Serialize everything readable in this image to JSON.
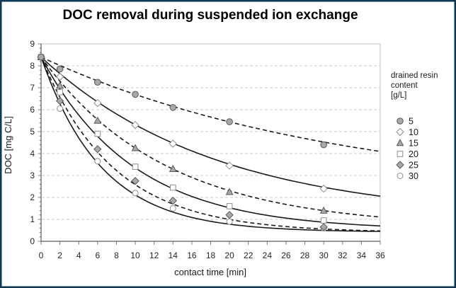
{
  "frame": {
    "border_color": "#0e3a5a",
    "background": "#ffffff"
  },
  "colors": {
    "grid": "#c9c9c9",
    "plot_border": "#bfbfbf",
    "axis": "#595959",
    "tick": "#808080",
    "trend_line": "#1a1a1a",
    "marker_fill_gray": "#a8a8a8",
    "marker_stroke_dark": "#595959",
    "marker_stroke_open": "#8c8c8c",
    "marker_fill_open": "#ffffff"
  },
  "chart_data": {
    "type": "scatter",
    "title": "DOC removal during suspended ion exchange",
    "xlabel": "contact time [min]",
    "ylabel": "DOC [mg C/L]",
    "xlim": [
      0,
      36
    ],
    "ylim": [
      0,
      9
    ],
    "x_tick_step": 2,
    "y_tick_step": 1,
    "y_minor_tick_step": 0.2,
    "grid": "horizontal dashed gridlines at each integer",
    "legend": {
      "position": "right",
      "title_lines": [
        "drained resin",
        "content",
        "[g/L]"
      ]
    },
    "x": [
      0,
      2,
      6,
      10,
      14,
      20,
      30
    ],
    "series": [
      {
        "name": "5",
        "marker": "circle-filled",
        "line": "dashed",
        "values": [
          8.4,
          7.85,
          7.25,
          6.7,
          6.1,
          5.45,
          4.4
        ],
        "trend": {
          "model": "exp-decay",
          "k": 0.031,
          "c": 2.0
        }
      },
      {
        "name": "10",
        "marker": "diamond-open",
        "line": "solid",
        "values": [
          8.4,
          7.5,
          6.3,
          5.3,
          4.45,
          3.45,
          2.4
        ],
        "trend": {
          "model": "exp-decay",
          "k": 0.054,
          "c": 1.0
        }
      },
      {
        "name": "15",
        "marker": "triangle-filled",
        "line": "dashed",
        "values": [
          8.4,
          7.1,
          5.5,
          4.25,
          3.3,
          2.25,
          1.4
        ],
        "trend": {
          "model": "exp-decay",
          "k": 0.076,
          "c": 0.6
        }
      },
      {
        "name": "20",
        "marker": "square-open",
        "line": "solid",
        "values": [
          8.4,
          6.8,
          4.9,
          3.4,
          2.45,
          1.6,
          0.95
        ],
        "trend": {
          "model": "exp-decay",
          "k": 0.102,
          "c": 0.5
        }
      },
      {
        "name": "25",
        "marker": "diamond-filled",
        "line": "dashed",
        "values": [
          8.4,
          6.4,
          4.2,
          2.75,
          1.85,
          1.2,
          0.65
        ],
        "trend": {
          "model": "exp-decay",
          "k": 0.13,
          "c": 0.4
        }
      },
      {
        "name": "30",
        "marker": "circle-open",
        "line": "solid",
        "values": [
          8.4,
          6.05,
          3.65,
          2.2,
          1.5,
          0.9,
          0.6
        ],
        "trend": {
          "model": "exp-decay",
          "k": 0.155,
          "c": 0.42
        }
      }
    ]
  }
}
